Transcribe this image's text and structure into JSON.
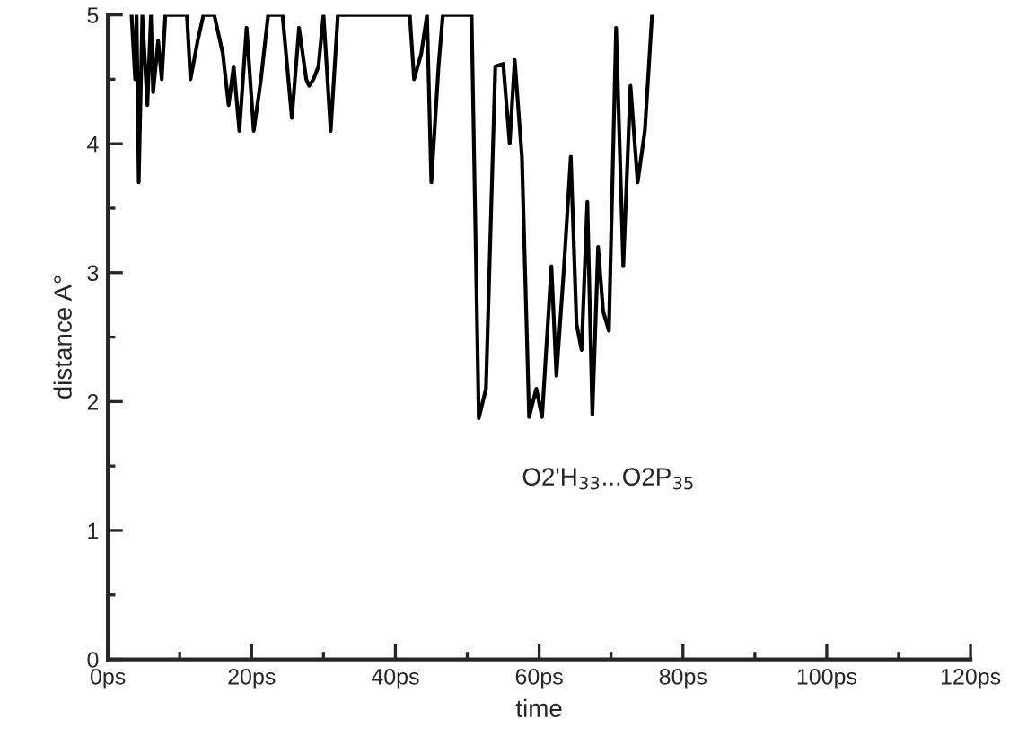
{
  "chart_data": {
    "type": "line",
    "xlabel": "time",
    "ylabel": "distance A°",
    "x": [
      3.3,
      3.8,
      4,
      4.3,
      4.8,
      5.5,
      6,
      6.3,
      7,
      7.5,
      8,
      11,
      11.5,
      12.5,
      13.3,
      14.8,
      16,
      16.8,
      17.5,
      18.3,
      19.3,
      20.3,
      21.3,
      22.3,
      24.3,
      25.6,
      26.6,
      27.6,
      28,
      28.6,
      29.3,
      30,
      31,
      32,
      35,
      42,
      42.6,
      43.6,
      44.4,
      45,
      46,
      46.6,
      50.6,
      51.6,
      52.6,
      53.9,
      55,
      55.9,
      56.6,
      57.6,
      58.6,
      59.6,
      60.4,
      61.7,
      62.4,
      63.4,
      64.4,
      65.2,
      65.9,
      66.7,
      67.4,
      68.2,
      68.9,
      69.7,
      70.7,
      71.7,
      72.7,
      73.7,
      74.7,
      75.7
    ],
    "series": [
      {
        "color": "#000000",
        "values": [
          5,
          4.5,
          5,
          3.7,
          5,
          4.3,
          5,
          4.4,
          4.8,
          4.5,
          5,
          5,
          4.5,
          4.8,
          5,
          5,
          4.7,
          4.3,
          4.6,
          4.1,
          4.9,
          4.1,
          4.5,
          5,
          5,
          4.2,
          4.9,
          4.5,
          4.45,
          4.5,
          4.6,
          5,
          4.1,
          5,
          5,
          5,
          4.5,
          4.7,
          5,
          3.7,
          4.6,
          5,
          5,
          1.87,
          2.1,
          4.6,
          4.62,
          4.0,
          4.65,
          3.9,
          1.88,
          2.1,
          1.88,
          3.05,
          2.2,
          3.0,
          3.9,
          2.6,
          2.4,
          3.55,
          1.9,
          3.2,
          2.7,
          2.55,
          4.9,
          3.05,
          4.45,
          3.7,
          4.1,
          5
        ]
      }
    ],
    "xlim": [
      0,
      120
    ],
    "ylim": [
      0,
      5
    ],
    "xticks": [
      {
        "value": 0,
        "label": "0ps"
      },
      {
        "value": 20,
        "label": "20ps"
      },
      {
        "value": 40,
        "label": "40ps"
      },
      {
        "value": 60,
        "label": "60ps"
      },
      {
        "value": 80,
        "label": "80ps"
      },
      {
        "value": 100,
        "label": "100ps"
      },
      {
        "value": 120,
        "label": "120ps"
      }
    ],
    "yticks": [
      0,
      1,
      2,
      3,
      4,
      5
    ],
    "annotations": [
      "O2'H$_{33}$...O2P$_{35}$"
    ],
    "grid": false,
    "legend": false,
    "marker": "none",
    "line_style": "solid"
  }
}
